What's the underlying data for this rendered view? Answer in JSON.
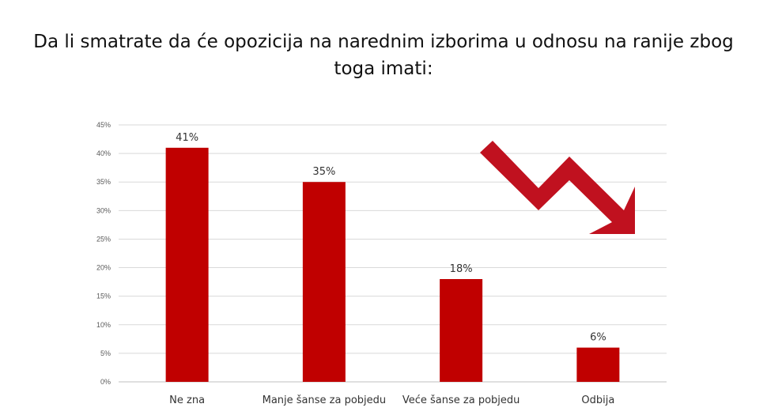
{
  "colors": {
    "bar": "#c00000",
    "arrow": "#c0111f",
    "grid": "#d9d9d9",
    "axis": "#bfbfbf"
  },
  "chart_data": {
    "type": "bar",
    "title": "Da li smatrate da će opozicija na narednim izborima u odnosu na ranije zbog toga imati:",
    "categories": [
      "Ne zna",
      "Manje šanse za pobjedu",
      "Veće šanse za pobjedu",
      "Odbija"
    ],
    "values": [
      41,
      35,
      18,
      6
    ],
    "value_labels": [
      "41%",
      "35%",
      "18%",
      "6%"
    ],
    "y_ticks": [
      "0%",
      "5%",
      "10%",
      "15%",
      "20%",
      "25%",
      "30%",
      "35%",
      "40%",
      "45%"
    ],
    "ylim": [
      0,
      45
    ],
    "grid": true,
    "legend": "none",
    "decoration": "downward-trend-arrow-icon"
  }
}
